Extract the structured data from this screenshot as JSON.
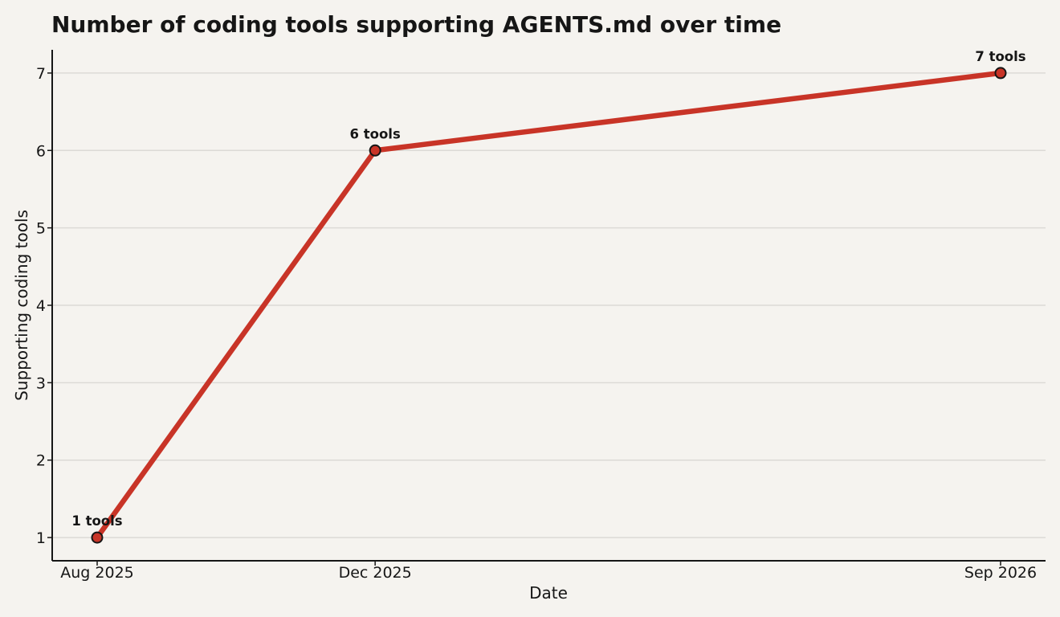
{
  "chart_data": {
    "type": "line",
    "title": "Number of coding tools supporting AGENTS.md over time",
    "xlabel": "Date",
    "ylabel": "Supporting coding tools",
    "x": [
      "2025-08",
      "2025-12",
      "2026-09"
    ],
    "x_tick_labels": [
      "Aug 2025",
      "Dec 2025",
      "Sep 2026"
    ],
    "y_ticks": [
      1,
      2,
      3,
      4,
      5,
      6,
      7
    ],
    "ylim": [
      0.7,
      7.3
    ],
    "grid": "horizontal",
    "series": [
      {
        "values": [
          1,
          6,
          7
        ],
        "labels": [
          "1 tools",
          "6 tools",
          "7 tools"
        ],
        "color": "#c83427",
        "marker_color": "#c83427",
        "marker_edge": "#161616"
      }
    ]
  }
}
